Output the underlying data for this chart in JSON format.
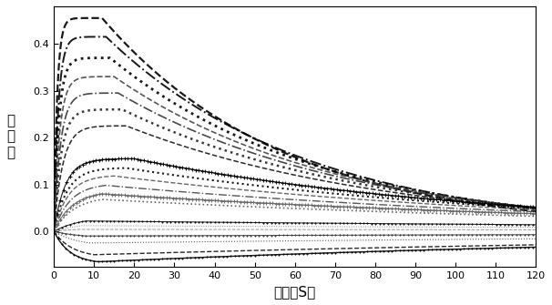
{
  "xlabel": "时间（S）",
  "ylabel": "响\n应\n値",
  "xlim": [
    0,
    120
  ],
  "ylim": [
    -0.075,
    0.48
  ],
  "yticks": [
    0.0,
    0.1,
    0.2,
    0.3,
    0.4
  ],
  "xticks": [
    0,
    10,
    20,
    30,
    40,
    50,
    60,
    70,
    80,
    90,
    100,
    110,
    120
  ],
  "background_color": "#ffffff",
  "curves": [
    {
      "peak": 0.455,
      "peak_t": 12,
      "rise_k": 1.2,
      "decay_k": 0.022,
      "ls": "--",
      "marker": "",
      "color": "#000000",
      "lw": 1.6,
      "ms": 0,
      "me": 10
    },
    {
      "peak": 0.415,
      "peak_t": 13,
      "rise_k": 0.9,
      "decay_k": 0.02,
      "ls": "-.",
      "marker": "",
      "color": "#000000",
      "lw": 1.4,
      "ms": 0,
      "me": 10
    },
    {
      "peak": 0.37,
      "peak_t": 14,
      "rise_k": 0.8,
      "decay_k": 0.019,
      "ls": ":",
      "marker": "",
      "color": "#000000",
      "lw": 2.0,
      "ms": 0,
      "me": 10
    },
    {
      "peak": 0.33,
      "peak_t": 15,
      "rise_k": 0.7,
      "decay_k": 0.018,
      "ls": "--",
      "marker": "",
      "color": "#444444",
      "lw": 1.2,
      "ms": 0,
      "me": 10
    },
    {
      "peak": 0.295,
      "peak_t": 16,
      "rise_k": 0.6,
      "decay_k": 0.017,
      "ls": "-.",
      "marker": "",
      "color": "#333333",
      "lw": 1.2,
      "ms": 0,
      "me": 10
    },
    {
      "peak": 0.26,
      "peak_t": 17,
      "rise_k": 0.55,
      "decay_k": 0.016,
      "ls": ":",
      "marker": "",
      "color": "#222222",
      "lw": 1.8,
      "ms": 0,
      "me": 10
    },
    {
      "peak": 0.225,
      "peak_t": 18,
      "rise_k": 0.45,
      "decay_k": 0.015,
      "ls": "--",
      "marker": "",
      "color": "#111111",
      "lw": 1.1,
      "ms": 0,
      "me": 10
    },
    {
      "peak": 0.155,
      "peak_t": 20,
      "rise_k": 0.35,
      "decay_k": 0.011,
      "ls": "-",
      "marker": "+",
      "color": "#000000",
      "lw": 0.8,
      "ms": 3,
      "me": 8
    },
    {
      "peak": 0.135,
      "peak_t": 18,
      "rise_k": 0.3,
      "decay_k": 0.01,
      "ls": ":",
      "marker": "",
      "color": "#000000",
      "lw": 1.5,
      "ms": 0,
      "me": 10
    },
    {
      "peak": 0.118,
      "peak_t": 15,
      "rise_k": 0.28,
      "decay_k": 0.009,
      "ls": "--",
      "marker": "",
      "color": "#555555",
      "lw": 1.0,
      "ms": 0,
      "me": 10
    },
    {
      "peak": 0.098,
      "peak_t": 13,
      "rise_k": 0.25,
      "decay_k": 0.008,
      "ls": "-.",
      "marker": "",
      "color": "#444444",
      "lw": 1.0,
      "ms": 0,
      "me": 10
    },
    {
      "peak": 0.08,
      "peak_t": 12,
      "rise_k": 0.22,
      "decay_k": 0.007,
      "ls": "-",
      "marker": "+",
      "color": "#666666",
      "lw": 0.8,
      "ms": 3,
      "me": 8
    },
    {
      "peak": 0.068,
      "peak_t": 12,
      "rise_k": 0.2,
      "decay_k": 0.007,
      "ls": ":",
      "marker": "",
      "color": "#555555",
      "lw": 1.2,
      "ms": 0,
      "me": 10
    },
    {
      "peak": 0.022,
      "peak_t": 8,
      "rise_k": 0.15,
      "decay_k": 0.004,
      "ls": "-",
      "marker": "+",
      "color": "#000000",
      "lw": 0.7,
      "ms": 2,
      "me": 10
    },
    {
      "peak": 0.012,
      "peak_t": 7,
      "rise_k": 0.12,
      "decay_k": 0.003,
      "ls": ":",
      "marker": "",
      "color": "#777777",
      "lw": 0.7,
      "ms": 0,
      "me": 10
    },
    {
      "peak": 0.004,
      "peak_t": 6,
      "rise_k": 0.1,
      "decay_k": 0.002,
      "ls": "--",
      "marker": "",
      "color": "#888888",
      "lw": 0.7,
      "ms": 0,
      "me": 10
    },
    {
      "peak": -0.01,
      "peak_t": 8,
      "rise_k": 0.15,
      "decay_k": 0.003,
      "ls": "-",
      "marker": "+",
      "color": "#333333",
      "lw": 0.7,
      "ms": 2,
      "me": 10
    },
    {
      "peak": -0.025,
      "peak_t": 9,
      "rise_k": 0.18,
      "decay_k": 0.004,
      "ls": ":",
      "marker": "",
      "color": "#444444",
      "lw": 0.8,
      "ms": 0,
      "me": 10
    },
    {
      "peak": -0.05,
      "peak_t": 10,
      "rise_k": 0.22,
      "decay_k": 0.005,
      "ls": "--",
      "marker": "",
      "color": "#111111",
      "lw": 1.0,
      "ms": 0,
      "me": 10
    },
    {
      "peak": -0.065,
      "peak_t": 11,
      "rise_k": 0.25,
      "decay_k": 0.006,
      "ls": "-",
      "marker": "+",
      "color": "#000000",
      "lw": 1.0,
      "ms": 2,
      "me": 10
    }
  ]
}
